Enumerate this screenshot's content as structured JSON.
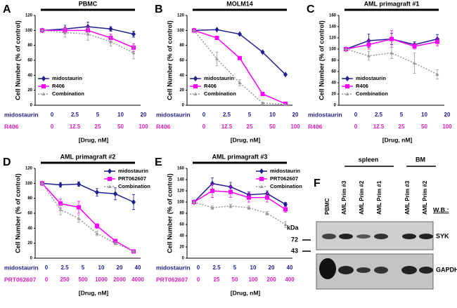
{
  "chart_data": [
    {
      "type": "line",
      "panel_label": "A",
      "title": "PBMC",
      "ylabel": "Cell Number (% of control)",
      "xlabel": "[Drug, nM]",
      "ylim": [
        0,
        120
      ],
      "yticks": [
        0,
        20,
        40,
        60,
        80,
        100,
        120
      ],
      "legend": "lower left",
      "dose_rows": [
        {
          "name": "midostaurin",
          "color": "#1f1f8f",
          "values": [
            0,
            2.5,
            5,
            10,
            20
          ]
        },
        {
          "name": "R406",
          "color": "#e020c0",
          "values": [
            0,
            12.5,
            25,
            50,
            100
          ]
        }
      ],
      "series": [
        {
          "name": "midostaurin",
          "color": "#1f1f8f",
          "marker": "diamond",
          "dashed": false,
          "values": [
            100,
            102,
            105,
            102,
            95
          ],
          "errors": [
            0,
            5,
            6,
            3,
            4
          ]
        },
        {
          "name": "R406",
          "color": "#ff00ff",
          "marker": "square",
          "dashed": false,
          "values": [
            100,
            100,
            100,
            90,
            77
          ],
          "errors": [
            0,
            4,
            5,
            5,
            5
          ]
        },
        {
          "name": "Combination",
          "color": "#999999",
          "marker": "triangle",
          "dashed": true,
          "values": [
            100,
            97,
            95,
            85,
            70
          ],
          "errors": [
            0,
            6,
            8,
            6,
            8
          ]
        }
      ]
    },
    {
      "type": "line",
      "panel_label": "B",
      "title": "MOLM14",
      "ylabel": "Cell Number (% of control)",
      "xlabel": "[Drug, nM]",
      "ylim": [
        0,
        120
      ],
      "yticks": [
        0,
        20,
        40,
        60,
        80,
        100,
        120
      ],
      "legend": "lower left",
      "dose_rows": [
        {
          "name": "midostaurin",
          "color": "#1f1f8f",
          "values": [
            0,
            2.5,
            5,
            10,
            20
          ]
        },
        {
          "name": "R406",
          "color": "#e020c0",
          "values": [
            0,
            12.5,
            25,
            50,
            100
          ]
        }
      ],
      "series": [
        {
          "name": "midostaurin",
          "color": "#1f1f8f",
          "marker": "diamond",
          "dashed": false,
          "values": [
            100,
            101,
            95,
            71,
            41
          ],
          "errors": [
            0,
            0,
            0,
            0,
            0
          ]
        },
        {
          "name": "R406",
          "color": "#ff00ff",
          "marker": "square",
          "dashed": false,
          "values": [
            100,
            90,
            63,
            15,
            2
          ],
          "errors": [
            0,
            2,
            0,
            0,
            0
          ]
        },
        {
          "name": "Combination",
          "color": "#999999",
          "marker": "triangle",
          "dashed": true,
          "values": [
            100,
            62,
            30,
            3,
            1
          ],
          "errors": [
            0,
            9,
            4,
            1,
            0
          ]
        }
      ]
    },
    {
      "type": "line",
      "panel_label": "C",
      "title": "AML primagraft #1",
      "ylabel": "Cell Number (% of control)",
      "xlabel": "[Drug, nM]",
      "ylim": [
        0,
        160
      ],
      "yticks": [
        0,
        20,
        40,
        60,
        80,
        100,
        120,
        140,
        160
      ],
      "legend": "lower left",
      "dose_rows": [
        {
          "name": "midostaurin",
          "color": "#1f1f8f",
          "values": [
            0,
            2.5,
            5,
            10,
            20
          ]
        },
        {
          "name": "R406",
          "color": "#e020c0",
          "values": [
            0,
            12.5,
            25,
            50,
            100
          ]
        }
      ],
      "series": [
        {
          "name": "midostaurin",
          "color": "#1f1f8f",
          "marker": "diamond",
          "dashed": false,
          "values": [
            100,
            115,
            118,
            108,
            118
          ],
          "errors": [
            0,
            12,
            10,
            5,
            8
          ]
        },
        {
          "name": "R406",
          "color": "#ff00ff",
          "marker": "square",
          "dashed": false,
          "values": [
            100,
            108,
            118,
            105,
            113
          ],
          "errors": [
            0,
            8,
            15,
            5,
            7
          ]
        },
        {
          "name": "Combination",
          "color": "#999999",
          "marker": "triangle",
          "dashed": true,
          "values": [
            100,
            88,
            93,
            75,
            55
          ],
          "errors": [
            0,
            8,
            10,
            18,
            8
          ]
        }
      ]
    },
    {
      "type": "line",
      "panel_label": "D",
      "title": "AML primagraft #2",
      "ylabel": "Cell Number (% of control)",
      "xlabel": "[Drug, nM]",
      "ylim": [
        0,
        120
      ],
      "yticks": [
        0,
        20,
        40,
        60,
        80,
        100,
        120
      ],
      "legend": "upper right",
      "dose_rows": [
        {
          "name": "midostaurin",
          "color": "#1f1f8f",
          "values": [
            0,
            2.5,
            5,
            10,
            20,
            40
          ]
        },
        {
          "name": "PRT062607",
          "color": "#e020c0",
          "values": [
            0,
            250,
            500,
            1000,
            2000,
            4000
          ]
        }
      ],
      "series": [
        {
          "name": "midostaurin",
          "color": "#1f1f8f",
          "marker": "diamond",
          "dashed": false,
          "values": [
            100,
            98,
            99,
            88,
            86,
            75
          ],
          "errors": [
            0,
            3,
            3,
            5,
            8,
            10
          ]
        },
        {
          "name": "PRT062607",
          "color": "#ff00ff",
          "marker": "square",
          "dashed": false,
          "values": [
            100,
            73,
            68,
            43,
            23,
            9
          ],
          "errors": [
            0,
            6,
            8,
            3,
            2,
            1
          ]
        },
        {
          "name": "Combination",
          "color": "#999999",
          "marker": "triangle",
          "dashed": true,
          "values": [
            100,
            65,
            53,
            33,
            20,
            9
          ],
          "errors": [
            0,
            7,
            5,
            3,
            2,
            1
          ]
        }
      ]
    },
    {
      "type": "line",
      "panel_label": "E",
      "title": "AML primagraft #3",
      "ylabel": "Cell Number (% of control)",
      "xlabel": "[Drug, nM]",
      "ylim": [
        0,
        160
      ],
      "yticks": [
        0,
        20,
        40,
        60,
        80,
        100,
        120,
        140,
        160
      ],
      "legend": "upper right",
      "dose_rows": [
        {
          "name": "midostaurin",
          "color": "#1f1f8f",
          "values": [
            0,
            2.5,
            5,
            10,
            20,
            40
          ]
        },
        {
          "name": "PRT062607",
          "color": "#e020c0",
          "values": [
            0,
            25,
            50,
            100,
            200,
            400
          ]
        }
      ],
      "series": [
        {
          "name": "midostaurin",
          "color": "#1f1f8f",
          "marker": "diamond",
          "dashed": false,
          "values": [
            100,
            133,
            127,
            113,
            115,
            96
          ],
          "errors": [
            0,
            10,
            8,
            5,
            5,
            3
          ]
        },
        {
          "name": "PRT062607",
          "color": "#ff00ff",
          "marker": "square",
          "dashed": false,
          "values": [
            100,
            120,
            118,
            108,
            108,
            87
          ],
          "errors": [
            0,
            12,
            10,
            8,
            8,
            5
          ]
        },
        {
          "name": "Combination",
          "color": "#999999",
          "marker": "triangle",
          "dashed": true,
          "values": [
            100,
            90,
            93,
            90,
            80,
            60
          ],
          "errors": [
            0,
            3,
            3,
            3,
            3,
            5
          ]
        }
      ]
    }
  ],
  "blot": {
    "panel_label": "F",
    "groups": [
      "spleen",
      "BM"
    ],
    "lanes": [
      "PBMC",
      "AML Prim #3",
      "AML Prim #2",
      "AML Prim #1",
      "AML Prim #3",
      "AML Prim #2"
    ],
    "wb_label": "W.B.:",
    "kda_label": "kDa",
    "markers": [
      "72",
      "43"
    ],
    "bands": [
      "SYK",
      "GAPDH"
    ]
  }
}
